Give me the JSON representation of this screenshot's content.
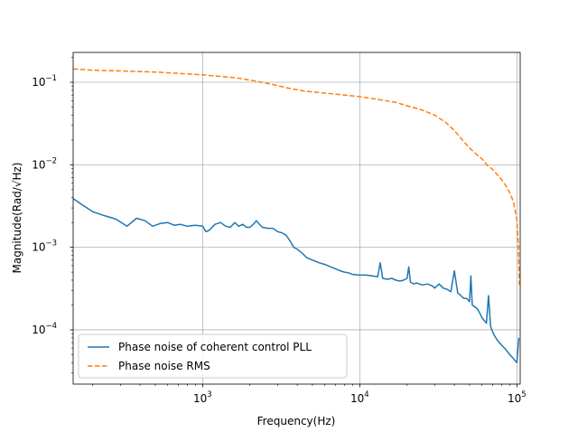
{
  "chart_data": {
    "type": "line",
    "title": "",
    "xlabel": "Frequency(Hz)",
    "ylabel": "Magnitude(Rad/√Hz)",
    "x_scale": "log",
    "y_scale": "log",
    "xlim": [
      150,
      105000
    ],
    "ylim": [
      2.2e-05,
      0.23
    ],
    "x_ticks": [
      {
        "value": 1000,
        "base": "10",
        "exp": "3"
      },
      {
        "value": 10000,
        "base": "10",
        "exp": "4"
      },
      {
        "value": 100000,
        "base": "10",
        "exp": "5"
      }
    ],
    "y_ticks": [
      {
        "value": 0.0001,
        "base": "10",
        "exp": "−4"
      },
      {
        "value": 0.001,
        "base": "10",
        "exp": "−3"
      },
      {
        "value": 0.01,
        "base": "10",
        "exp": "−2"
      },
      {
        "value": 0.1,
        "base": "10",
        "exp": "−1"
      }
    ],
    "grid": true,
    "legend_position": "lower-left",
    "series": [
      {
        "name": "Phase noise of coherent control PLL",
        "color": "#1f77b4",
        "style": "solid",
        "x": [
          150,
          170,
          200,
          240,
          280,
          330,
          380,
          430,
          480,
          540,
          600,
          660,
          720,
          800,
          900,
          1000,
          1050,
          1100,
          1200,
          1300,
          1400,
          1500,
          1600,
          1700,
          1800,
          1900,
          2000,
          2100,
          2200,
          2300,
          2400,
          2600,
          2800,
          3000,
          3200,
          3400,
          3600,
          3800,
          4000,
          4300,
          4600,
          5000,
          5500,
          6000,
          6500,
          7000,
          7500,
          8000,
          8500,
          9000,
          10000,
          11000,
          12000,
          13000,
          13500,
          14000,
          15000,
          16000,
          17000,
          18000,
          19000,
          20000,
          20500,
          21000,
          22000,
          23000,
          25000,
          27000,
          29000,
          30000,
          32000,
          34000,
          36000,
          38000,
          40000,
          42000,
          44000,
          46000,
          48000,
          50000,
          51000,
          52000,
          54000,
          56000,
          58000,
          60000,
          62000,
          64000,
          66000,
          68000,
          70000,
          72000,
          75000,
          80000,
          85000,
          90000,
          95000,
          100000,
          103000
        ],
        "values": [
          0.0039,
          0.0033,
          0.0027,
          0.0024,
          0.0022,
          0.0018,
          0.00225,
          0.0021,
          0.0018,
          0.00195,
          0.002,
          0.00185,
          0.0019,
          0.0018,
          0.00185,
          0.0018,
          0.00155,
          0.0016,
          0.0019,
          0.002,
          0.0018,
          0.00175,
          0.002,
          0.0018,
          0.0019,
          0.00175,
          0.00175,
          0.0019,
          0.0021,
          0.0019,
          0.00175,
          0.0017,
          0.0017,
          0.00155,
          0.0015,
          0.0014,
          0.0012,
          0.001,
          0.00095,
          0.00085,
          0.00075,
          0.0007,
          0.00065,
          0.00062,
          0.00058,
          0.00055,
          0.00052,
          0.0005,
          0.00049,
          0.00047,
          0.00046,
          0.00046,
          0.00045,
          0.00044,
          0.00065,
          0.00042,
          0.00041,
          0.00042,
          0.0004,
          0.00039,
          0.0004,
          0.00042,
          0.00058,
          0.00038,
          0.00036,
          0.00037,
          0.00035,
          0.00036,
          0.00034,
          0.00032,
          0.00036,
          0.00032,
          0.00031,
          0.00029,
          0.00052,
          0.00028,
          0.00026,
          0.00024,
          0.00024,
          0.00022,
          0.00045,
          0.0002,
          0.00019,
          0.00018,
          0.00016,
          0.00014,
          0.00013,
          0.00012,
          0.00026,
          0.00011,
          9.5e-05,
          8.5e-05,
          7.5e-05,
          6.5e-05,
          5.8e-05,
          5e-05,
          4.5e-05,
          4e-05,
          8e-05
        ]
      },
      {
        "name": "Phase noise RMS",
        "color": "#ff7f0e",
        "style": "dashed",
        "x": [
          150,
          200,
          300,
          500,
          700,
          1000,
          1300,
          1700,
          2200,
          2800,
          3500,
          4500,
          6000,
          8000,
          10000,
          13000,
          17000,
          20000,
          25000,
          30000,
          35000,
          40000,
          45000,
          50000,
          55000,
          60000,
          65000,
          70000,
          75000,
          80000,
          85000,
          90000,
          95000,
          100000,
          102000,
          103000,
          104000
        ],
        "values": [
          0.145,
          0.14,
          0.137,
          0.133,
          0.128,
          0.123,
          0.118,
          0.112,
          0.103,
          0.094,
          0.085,
          0.078,
          0.074,
          0.07,
          0.067,
          0.062,
          0.057,
          0.052,
          0.046,
          0.04,
          0.033,
          0.026,
          0.02,
          0.016,
          0.0135,
          0.0118,
          0.0098,
          0.0088,
          0.0076,
          0.0066,
          0.0056,
          0.0046,
          0.0036,
          0.0022,
          0.0011,
          0.0006,
          0.00035
        ]
      }
    ]
  }
}
